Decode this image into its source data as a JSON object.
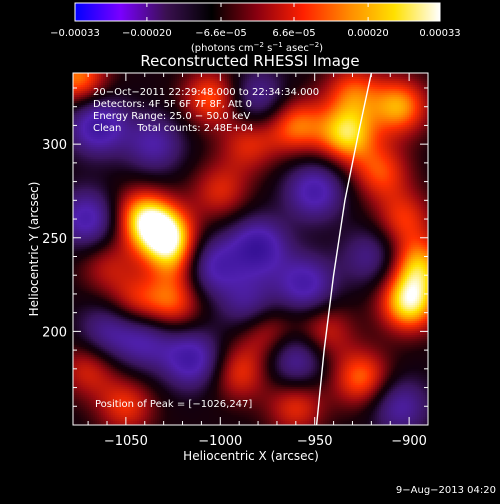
{
  "chart_data": {
    "type": "heatmap",
    "title": "Reconstructed RHESSI Image",
    "xlabel": "Heliocentric X (arcsec)",
    "ylabel": "Heliocentric Y (arcsec)",
    "xlim": [
      -1078,
      -890
    ],
    "ylim": [
      150,
      338
    ],
    "xticks": [
      {
        "v": -1050,
        "label": "−1050"
      },
      {
        "v": -1000,
        "label": "−1000"
      },
      {
        "v": -950,
        "label": "−950"
      },
      {
        "v": -900,
        "label": "−900"
      }
    ],
    "yticks": [
      {
        "v": 200,
        "label": "200"
      },
      {
        "v": 250,
        "label": "250"
      },
      {
        "v": 300,
        "label": "300"
      }
    ],
    "colorbar": {
      "min": -0.00033,
      "max": 0.00033,
      "ticks": [
        {
          "v": -0.00033,
          "label": "−0.00033"
        },
        {
          "v": -0.0002,
          "label": "−0.00020"
        },
        {
          "v": -6.6e-05,
          "label": "−6.6e−05"
        },
        {
          "v": 6.6e-05,
          "label": "6.6e−05"
        },
        {
          "v": 0.0002,
          "label": "0.00020"
        },
        {
          "v": 0.00033,
          "label": "0.00033"
        }
      ],
      "unit_parts": [
        "(photons cm",
        "−2",
        " s",
        "−1",
        " asec",
        "−2",
        ")"
      ],
      "colormap": [
        "#0000ff",
        "#7a00ff",
        "#3a1050",
        "#000000",
        "#8b0010",
        "#ff2000",
        "#ff8a00",
        "#ffe000",
        "#ffffff"
      ]
    },
    "info_lines": [
      "20−Oct−2011 22:29:48.000 to 22:34:34.000",
      "Detectors: 4F 5F 6F 7F 8F, Att 0",
      "Energy Range: 25.0 − 50.0 keV",
      "Clean     Total counts: 2.48E+04"
    ],
    "peak_text": "Position of Peak = [−1026,247]",
    "limb_points": [
      [
        -949,
        150
      ],
      [
        -945,
        190
      ],
      [
        -940,
        230
      ],
      [
        -934,
        270
      ],
      [
        -927,
        305
      ],
      [
        -920,
        338
      ]
    ],
    "sources": [
      {
        "x": -1030,
        "y": 252,
        "a": 1.0
      },
      {
        "x": -1042,
        "y": 262,
        "a": 0.7
      },
      {
        "x": -1022,
        "y": 238,
        "a": 0.5
      },
      {
        "x": -1025,
        "y": 215,
        "a": 0.55
      },
      {
        "x": -1075,
        "y": 335,
        "a": 0.7
      },
      {
        "x": -1005,
        "y": 325,
        "a": 0.6
      },
      {
        "x": -985,
        "y": 300,
        "a": 0.45
      },
      {
        "x": -1000,
        "y": 275,
        "a": 0.45
      },
      {
        "x": -960,
        "y": 310,
        "a": 0.65
      },
      {
        "x": -930,
        "y": 328,
        "a": 0.55
      },
      {
        "x": -933,
        "y": 305,
        "a": 0.85
      },
      {
        "x": -905,
        "y": 320,
        "a": 0.75
      },
      {
        "x": -915,
        "y": 285,
        "a": 0.55
      },
      {
        "x": -903,
        "y": 260,
        "a": 0.5
      },
      {
        "x": -900,
        "y": 215,
        "a": 0.95
      },
      {
        "x": -895,
        "y": 235,
        "a": 0.75
      },
      {
        "x": -925,
        "y": 175,
        "a": 0.65
      },
      {
        "x": -945,
        "y": 200,
        "a": 0.45
      },
      {
        "x": -1045,
        "y": 215,
        "a": 0.45
      },
      {
        "x": -1060,
        "y": 235,
        "a": 0.35
      },
      {
        "x": -975,
        "y": 200,
        "a": 0.45
      },
      {
        "x": -990,
        "y": 178,
        "a": 0.5
      },
      {
        "x": -1050,
        "y": 160,
        "a": 0.5
      },
      {
        "x": -1070,
        "y": 180,
        "a": 0.45
      },
      {
        "x": -960,
        "y": 160,
        "a": 0.5
      },
      {
        "x": -1065,
        "y": 310,
        "a": -0.8
      },
      {
        "x": -1070,
        "y": 260,
        "a": -0.7
      },
      {
        "x": -1005,
        "y": 235,
        "a": -0.7
      },
      {
        "x": -980,
        "y": 245,
        "a": -0.8
      },
      {
        "x": -955,
        "y": 225,
        "a": -0.7
      },
      {
        "x": -1015,
        "y": 185,
        "a": -0.75
      },
      {
        "x": -950,
        "y": 275,
        "a": -0.7
      },
      {
        "x": -960,
        "y": 185,
        "a": -0.6
      },
      {
        "x": -905,
        "y": 160,
        "a": -0.55
      },
      {
        "x": -1035,
        "y": 300,
        "a": -0.55
      },
      {
        "x": -1040,
        "y": 195,
        "a": -0.55
      },
      {
        "x": -985,
        "y": 215,
        "a": -0.5
      },
      {
        "x": -920,
        "y": 240,
        "a": -0.45
      },
      {
        "x": -1060,
        "y": 200,
        "a": -0.5
      },
      {
        "x": -980,
        "y": 325,
        "a": -0.5
      }
    ]
  },
  "footer_date": "9−Aug−2013 04:20"
}
